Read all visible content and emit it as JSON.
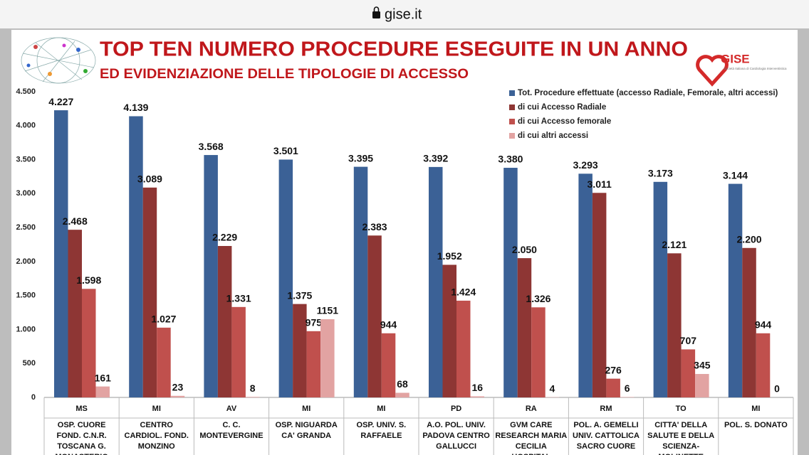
{
  "browser": {
    "url": "gise.it"
  },
  "logo": {
    "name": "GISE",
    "tagline": "Società Italiana di Cardiologia Interventistica"
  },
  "chart_data": {
    "type": "bar",
    "title": "TOP TEN NUMERO PROCEDURE ESEGUITE IN UN ANNO",
    "subtitle": "ED EVIDENZIAZIONE DELLE TIPOLOGIE DI ACCESSO",
    "provinces": [
      "MS",
      "MI",
      "AV",
      "MI",
      "MI",
      "PD",
      "RA",
      "RM",
      "TO",
      "MI"
    ],
    "categories": [
      "OSP. CUORE FOND. C.N.R. TOSCANA G. MONASTERIO",
      "CENTRO CARDIOL. FOND. MONZINO",
      "C. C. MONTEVERGINE",
      "OSP. NIGUARDA CA' GRANDA",
      "OSP. UNIV. S. RAFFAELE",
      "A.O. POL. UNIV. PADOVA CENTRO GALLUCCI",
      "GVM CARE RESEARCH MARIA CECILIA HOSPITAL",
      "POL. A. GEMELLI UNIV. CATTOLICA SACRO CUORE",
      "CITTA' DELLA SALUTE E DELLA SCIENZA-MOLINETTE TORINO",
      "POL. S. DONATO"
    ],
    "series": [
      {
        "name": "Tot. Procedure effettuate (accesso Radiale, Femorale, altri accessi)",
        "color": "#3b6196",
        "values": [
          4227,
          4139,
          3568,
          3501,
          3395,
          3392,
          3380,
          3293,
          3173,
          3144
        ],
        "value_labels": [
          "4.227",
          "4.139",
          "3.568",
          "3.501",
          "3.395",
          "3.392",
          "3.380",
          "3.293",
          "3.173",
          "3.144"
        ]
      },
      {
        "name": "di cui Accesso Radiale",
        "color": "#8e3634",
        "values": [
          2468,
          3089,
          2229,
          1375,
          2383,
          1952,
          2050,
          3011,
          2121,
          2200
        ],
        "value_labels": [
          "2.468",
          "3.089",
          "2.229",
          "1.375",
          "2.383",
          "1.952",
          "2.050",
          "3.011",
          "2.121",
          "2.200"
        ]
      },
      {
        "name": "di cui Accesso femorale",
        "color": "#c0504d",
        "values": [
          1598,
          1027,
          1331,
          975,
          944,
          1424,
          1326,
          276,
          707,
          944
        ],
        "value_labels": [
          "1.598",
          "1.027",
          "1.331",
          "975",
          "944",
          "1.424",
          "1.326",
          "276",
          "707",
          "944"
        ]
      },
      {
        "name": "di cui altri accessi",
        "color": "#e2a3a2",
        "values": [
          161,
          23,
          8,
          1151,
          68,
          16,
          4,
          6,
          345,
          0
        ]
      }
    ],
    "ylim": [
      0,
      4500
    ],
    "yticks": [
      0,
      500,
      {
        "value": 1000,
        "label": "1.000"
      },
      {
        "value": 1500,
        "label": "1.500"
      },
      {
        "value": 2000,
        "label": "2.000"
      },
      {
        "value": 2500,
        "label": "2.500"
      },
      {
        "value": 3000,
        "label": "3.000"
      },
      {
        "value": 3500,
        "label": "3.500"
      },
      {
        "value": 4000,
        "label": "4.000"
      },
      {
        "value": 4500,
        "label": "4.500"
      }
    ],
    "grid": false
  }
}
